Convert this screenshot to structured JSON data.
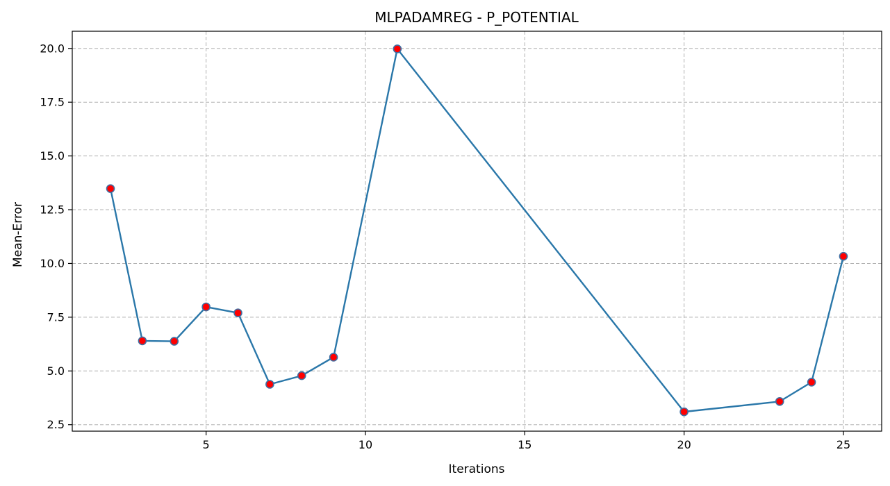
{
  "chart_data": {
    "type": "line",
    "title": "MLPADAMREG - P_POTENTIAL",
    "xlabel": "Iterations",
    "ylabel": "Mean-Error",
    "xlim": [
      0.8,
      26.2
    ],
    "ylim": [
      2.2,
      20.8
    ],
    "xticks": [
      5,
      10,
      15,
      20,
      25
    ],
    "xtick_labels": [
      "5",
      "10",
      "15",
      "20",
      "25"
    ],
    "yticks": [
      2.5,
      5.0,
      7.5,
      10.0,
      12.5,
      15.0,
      17.5,
      20.0
    ],
    "ytick_labels": [
      "2.5",
      "5.0",
      "7.5",
      "10.0",
      "12.5",
      "15.0",
      "17.5",
      "20.0"
    ],
    "grid": true,
    "x": [
      2,
      3,
      4,
      5,
      6,
      7,
      8,
      9,
      11,
      20,
      23,
      24,
      25
    ],
    "y": [
      13.48,
      6.4,
      6.38,
      7.98,
      7.7,
      4.38,
      4.78,
      5.64,
      19.98,
      3.1,
      3.58,
      4.48,
      10.33
    ],
    "line_color": "#2a77a9",
    "marker_fill": "#ff0000",
    "marker_edge": "#3f6fa3"
  }
}
